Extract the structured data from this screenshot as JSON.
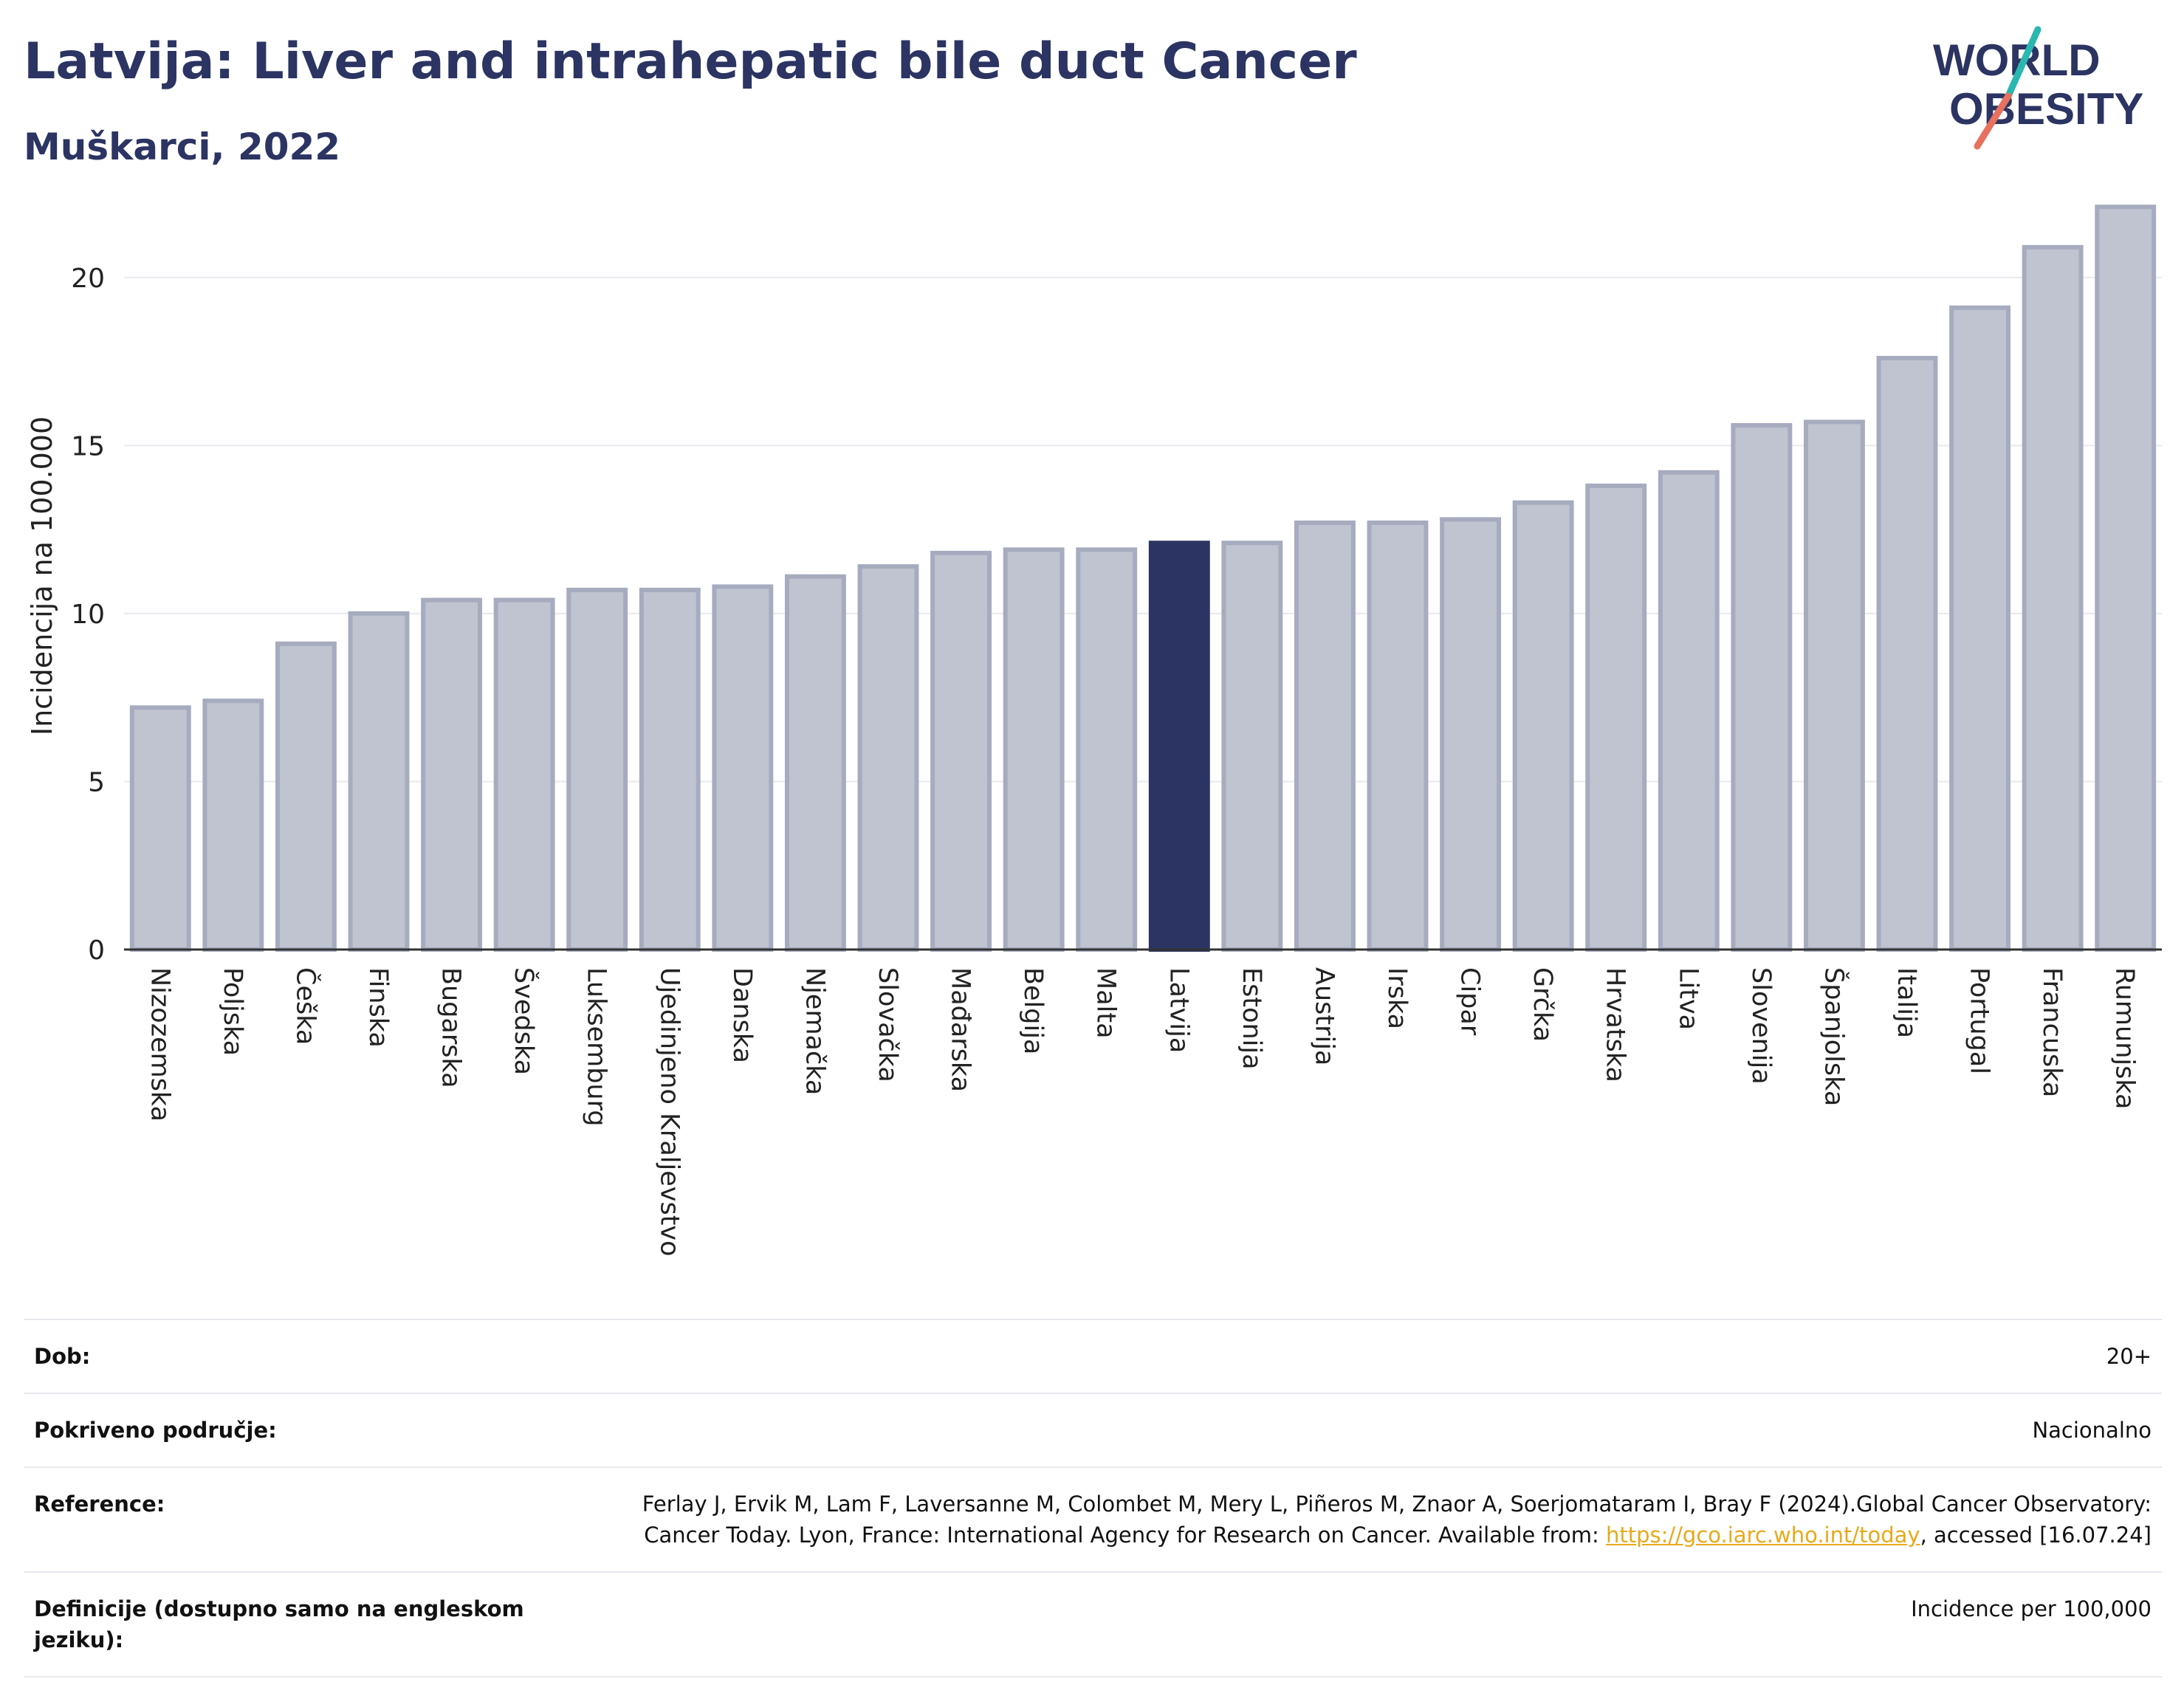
{
  "header": {
    "title": "Latvija: Liver and intrahepatic bile duct Cancer",
    "subtitle": "Muškarci, 2022"
  },
  "logo": {
    "line1": "WORLD",
    "line2": "OBESITY",
    "colors": {
      "text": "#2b3462",
      "slash_teal": "#2ab7b0",
      "slash_red": "#e8705e"
    }
  },
  "chart_data": {
    "type": "bar",
    "title": "Latvija: Liver and intrahepatic bile duct Cancer",
    "subtitle": "Muškarci, 2022",
    "ylabel": "Incidencija na 100.000",
    "xlabel": "",
    "ylim": [
      0,
      22.5
    ],
    "yticks": [
      0,
      5,
      10,
      15,
      20
    ],
    "grid": true,
    "highlight": "Latvija",
    "colors": {
      "bar": "#c0c3d0",
      "bar_edge": "#a6abbf",
      "highlight": "#2b3462"
    },
    "categories": [
      "Nizozemska",
      "Poljska",
      "Češka",
      "Finska",
      "Bugarska",
      "Švedska",
      "Luksemburg",
      "Ujedinjeno Kraljevstvo",
      "Danska",
      "Njemačka",
      "Slovačka",
      "Mađarska",
      "Belgija",
      "Malta",
      "Latvija",
      "Estonija",
      "Austrija",
      "Irska",
      "Cipar",
      "Grčka",
      "Hrvatska",
      "Litva",
      "Slovenija",
      "Španjolska",
      "Italija",
      "Portugal",
      "Francuska",
      "Rumunjska"
    ],
    "values": [
      7.2,
      7.4,
      9.1,
      10.0,
      10.4,
      10.4,
      10.7,
      10.7,
      10.8,
      11.1,
      11.4,
      11.8,
      11.9,
      11.9,
      12.1,
      12.1,
      12.7,
      12.7,
      12.8,
      13.3,
      13.8,
      14.2,
      15.6,
      15.7,
      17.6,
      19.1,
      20.9,
      22.1
    ]
  },
  "meta": {
    "rows": [
      {
        "label": "Dob:",
        "value": "20+"
      },
      {
        "label": "Pokriveno područje:",
        "value": "Nacionalno"
      }
    ],
    "reference": {
      "label": "Reference:",
      "text_before": "Ferlay J, Ervik M, Lam F, Laversanne M, Colombet M, Mery L, Piñeros M, Znaor A, Soerjomataram I, Bray F (2024).Global Cancer Observatory: Cancer Today. Lyon, France: International Agency for Research on Cancer. Available from: ",
      "link": "https://gco.iarc.who.int/today",
      "text_after": ", accessed [16.07.24]"
    },
    "definitions": {
      "label": "Definicije (dostupno samo na engleskom jeziku):",
      "value": "Incidence per 100,000"
    }
  }
}
